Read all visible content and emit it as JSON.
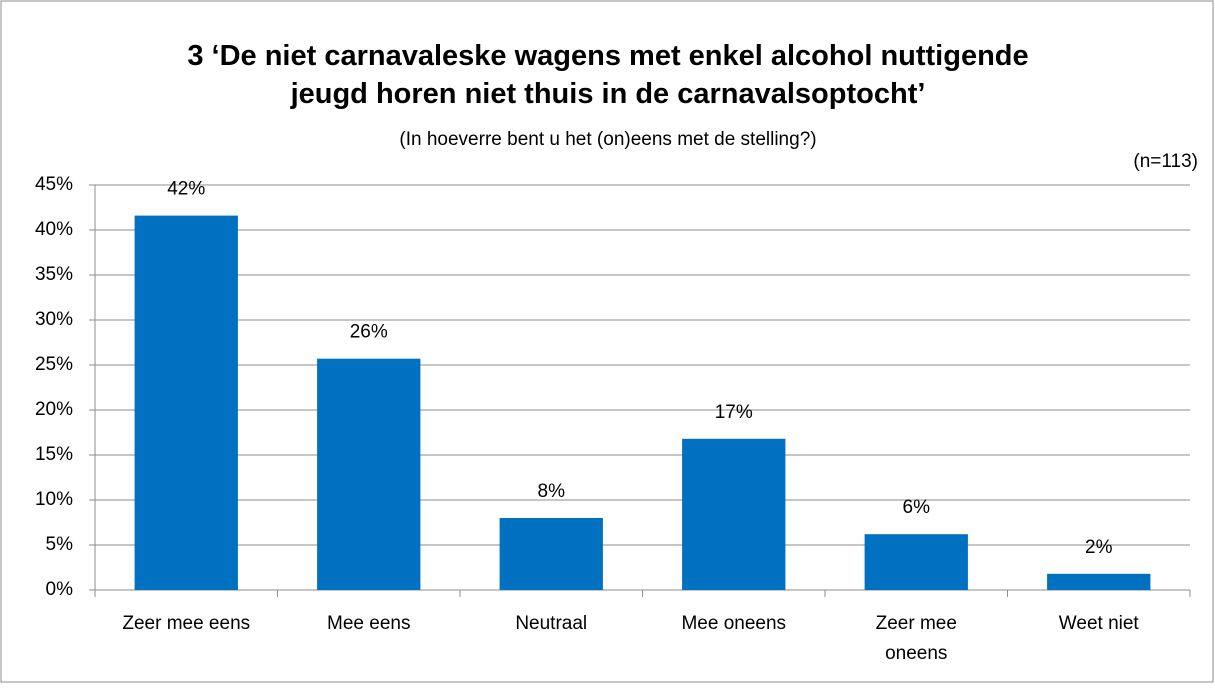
{
  "chart_data": {
    "type": "bar",
    "title": "3 ‘De niet carnavaleske wagens met enkel alcohol nuttigende jeugd horen niet thuis in de carnavalsoptocht’",
    "subtitle": "(In hoeverre bent u het (on)eens met de stelling?)",
    "annotation": "(n=113)",
    "categories": [
      "Zeer mee eens",
      "Mee eens",
      "Neutraal",
      "Mee oneens",
      "Zeer mee oneens",
      "Weet niet"
    ],
    "values": [
      41.6,
      25.7,
      8.0,
      16.8,
      6.2,
      1.8
    ],
    "value_labels": [
      "42%",
      "26%",
      "8%",
      "17%",
      "6%",
      "2%"
    ],
    "color": "#0070c0",
    "ylim": [
      0,
      45
    ],
    "yticks": [
      {
        "value": 0,
        "label": "0%"
      },
      {
        "value": 5,
        "label": "5%"
      },
      {
        "value": 10,
        "label": "10%"
      },
      {
        "value": 15,
        "label": "15%"
      },
      {
        "value": 20,
        "label": "20%"
      },
      {
        "value": 25,
        "label": "25%"
      },
      {
        "value": 30,
        "label": "30%"
      },
      {
        "value": 35,
        "label": "35%"
      },
      {
        "value": 40,
        "label": "40%"
      },
      {
        "value": 45,
        "label": "45%"
      }
    ],
    "grid": true
  }
}
